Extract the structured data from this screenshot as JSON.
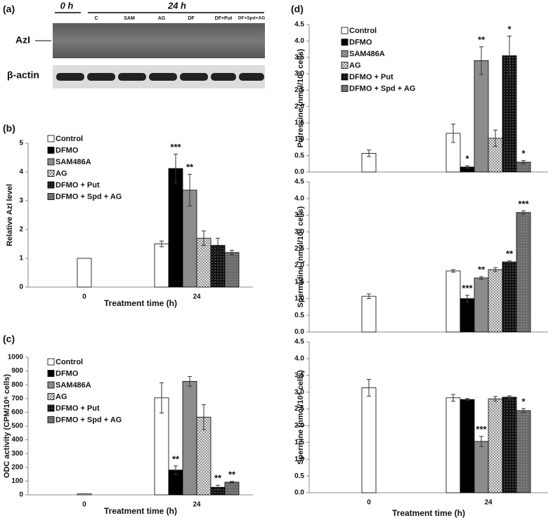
{
  "blot": {
    "panel": "(a)",
    "time_labels": [
      "0 h",
      "24 h"
    ],
    "lanes": [
      "C",
      "SAM",
      "AG",
      "DF",
      "DF+Put",
      "DF+Spd+AG"
    ],
    "rows": [
      "AzI",
      "β-actin"
    ]
  },
  "chart_data": [
    {
      "type": "bar",
      "panel": "(b)",
      "ylabel": "Relative AzI level",
      "xlabel": "Treatment time (h)",
      "categories": [
        "0",
        "24"
      ],
      "ylim": [
        0,
        5
      ],
      "yticks": [
        0,
        1,
        2,
        3,
        4,
        5
      ],
      "legend": "upper left",
      "series": [
        {
          "name": "Control",
          "color": "#ffffff",
          "values": [
            1,
            1.5
          ],
          "errors": [
            null,
            0.1
          ],
          "significance": [
            null,
            null
          ]
        },
        {
          "name": "DFMO",
          "color": "#000000",
          "values": [
            null,
            4.12
          ],
          "errors": [
            null,
            0.5
          ],
          "significance": [
            null,
            "***"
          ]
        },
        {
          "name": "SAM486A",
          "color": "#8c8c8c",
          "values": [
            null,
            3.37
          ],
          "errors": [
            null,
            0.55
          ],
          "significance": [
            null,
            "**"
          ]
        },
        {
          "name": "AG",
          "color": "#ffffff",
          "pattern": "crosshatch",
          "values": [
            null,
            1.7
          ],
          "errors": [
            null,
            0.25
          ],
          "significance": [
            null,
            null
          ]
        },
        {
          "name": "DFMO + Put",
          "color": "#111111",
          "pattern": "dots",
          "values": [
            null,
            1.45
          ],
          "errors": [
            null,
            0.25
          ],
          "significance": [
            null,
            null
          ]
        },
        {
          "name": "DFMO + Spd + AG",
          "color": "#6a6a6a",
          "pattern": "dots",
          "values": [
            null,
            1.2
          ],
          "errors": [
            null,
            0.08
          ],
          "significance": [
            null,
            null
          ]
        }
      ]
    },
    {
      "type": "bar",
      "panel": "(c)",
      "ylabel": "ODC activity (CPM/10⁶ cells)",
      "xlabel": "Treatment time (h)",
      "categories": [
        "0",
        "24"
      ],
      "ylim": [
        0,
        1000
      ],
      "yticks": [
        0,
        100,
        200,
        300,
        400,
        500,
        600,
        700,
        800,
        900,
        1000
      ],
      "legend": "upper left",
      "series": [
        {
          "name": "Control",
          "color": "#ffffff",
          "values": [
            7,
            705
          ],
          "errors": [
            null,
            110
          ],
          "significance": [
            null,
            null
          ]
        },
        {
          "name": "DFMO",
          "color": "#000000",
          "values": [
            null,
            180
          ],
          "errors": [
            null,
            30
          ],
          "significance": [
            null,
            "**"
          ]
        },
        {
          "name": "SAM486A",
          "color": "#8c8c8c",
          "values": [
            null,
            825
          ],
          "errors": [
            null,
            35
          ],
          "significance": [
            null,
            null
          ]
        },
        {
          "name": "AG",
          "color": "#ffffff",
          "pattern": "crosshatch",
          "values": [
            null,
            565
          ],
          "errors": [
            null,
            90
          ],
          "significance": [
            null,
            null
          ]
        },
        {
          "name": "DFMO + Put",
          "color": "#111111",
          "pattern": "dots",
          "values": [
            null,
            55
          ],
          "errors": [
            null,
            15
          ],
          "significance": [
            null,
            "**"
          ]
        },
        {
          "name": "DFMO + Spd + AG",
          "color": "#6a6a6a",
          "pattern": "dots",
          "values": [
            null,
            92
          ],
          "errors": [
            null,
            5
          ],
          "significance": [
            null,
            "**"
          ]
        }
      ]
    },
    {
      "type": "bar",
      "panel": "(d)",
      "ylabel": "Putrescine (nmol/10⁶ cells)",
      "categories": [
        null,
        null
      ],
      "ylim": [
        0,
        4.5
      ],
      "yticks": [
        {
          "value": 0,
          "label": "0.0"
        },
        0.5,
        {
          "value": 1,
          "label": "1.0"
        },
        1.5,
        {
          "value": 2,
          "label": "2.0"
        },
        2.5,
        {
          "value": 3,
          "label": "3.0"
        },
        3.5,
        {
          "value": 4,
          "label": "4.0"
        },
        4.5
      ],
      "legend": "upper left",
      "series": [
        {
          "name": "Control",
          "color": "#ffffff",
          "values": [
            0.57,
            1.18
          ],
          "errors": [
            0.1,
            0.28
          ],
          "significance": [
            null,
            null
          ]
        },
        {
          "name": "DFMO",
          "color": "#000000",
          "values": [
            null,
            0.15
          ],
          "errors": [
            null,
            0.04
          ],
          "significance": [
            null,
            "*"
          ]
        },
        {
          "name": "SAM486A",
          "color": "#8c8c8c",
          "values": [
            null,
            3.4
          ],
          "errors": [
            null,
            0.42
          ],
          "significance": [
            null,
            "**"
          ]
        },
        {
          "name": "AG",
          "color": "#ffffff",
          "pattern": "crosshatch",
          "values": [
            null,
            1.03
          ],
          "errors": [
            null,
            0.25
          ],
          "significance": [
            null,
            null
          ]
        },
        {
          "name": "DFMO + Put",
          "color": "#111111",
          "pattern": "dots",
          "values": [
            null,
            3.55
          ],
          "errors": [
            null,
            0.6
          ],
          "significance": [
            null,
            "*"
          ]
        },
        {
          "name": "DFMO + Spd + AG",
          "color": "#6a6a6a",
          "pattern": "dots",
          "values": [
            null,
            0.3
          ],
          "errors": [
            null,
            0.05
          ],
          "significance": [
            null,
            "*"
          ]
        }
      ]
    },
    {
      "type": "bar",
      "ylabel": "Spermidine (nmol/10⁶ cells)",
      "categories": [
        null,
        null
      ],
      "ylim": [
        0,
        4.5
      ],
      "yticks": [
        {
          "value": 0,
          "label": "0.0"
        },
        0.5,
        {
          "value": 1,
          "label": "1.0"
        },
        1.5,
        {
          "value": 2,
          "label": "2.0"
        },
        2.5,
        {
          "value": 3,
          "label": "3.0"
        },
        3.5,
        {
          "value": 4,
          "label": "4.0"
        },
        4.5
      ],
      "series": [
        {
          "name": "Control",
          "color": "#ffffff",
          "values": [
            1.07,
            1.83
          ],
          "errors": [
            0.07,
            0.04
          ],
          "significance": [
            null,
            null
          ]
        },
        {
          "name": "DFMO",
          "color": "#000000",
          "values": [
            null,
            1.0
          ],
          "errors": [
            null,
            0.1
          ],
          "significance": [
            null,
            "***"
          ]
        },
        {
          "name": "SAM486A",
          "color": "#8c8c8c",
          "values": [
            null,
            1.62
          ],
          "errors": [
            null,
            0.04
          ],
          "significance": [
            null,
            "**"
          ]
        },
        {
          "name": "AG",
          "color": "#ffffff",
          "pattern": "crosshatch",
          "values": [
            null,
            1.87
          ],
          "errors": [
            null,
            0.06
          ],
          "significance": [
            null,
            null
          ]
        },
        {
          "name": "DFMO + Put",
          "color": "#111111",
          "pattern": "dots",
          "values": [
            null,
            2.1
          ],
          "errors": [
            null,
            0.03
          ],
          "significance": [
            null,
            "**"
          ]
        },
        {
          "name": "DFMO + Spd + AG",
          "color": "#6a6a6a",
          "pattern": "dots",
          "values": [
            null,
            3.58
          ],
          "errors": [
            null,
            0.05
          ],
          "significance": [
            null,
            "***"
          ]
        }
      ]
    },
    {
      "type": "bar",
      "ylabel": "Spermine (nmol/10⁶ cells)",
      "xlabel": "Treatment time (h)",
      "categories": [
        "0",
        "24"
      ],
      "ylim": [
        0,
        4.5
      ],
      "yticks": [
        {
          "value": 0,
          "label": "0.0"
        },
        0.5,
        {
          "value": 1,
          "label": "1.0"
        },
        1.5,
        {
          "value": 2,
          "label": "2.0"
        },
        2.5,
        {
          "value": 3,
          "label": "3.0"
        },
        3.5,
        {
          "value": 4,
          "label": "4.0"
        },
        4.5
      ],
      "series": [
        {
          "name": "Control",
          "color": "#ffffff",
          "values": [
            3.13,
            2.83
          ],
          "errors": [
            0.25,
            0.1
          ],
          "significance": [
            null,
            null
          ]
        },
        {
          "name": "DFMO",
          "color": "#000000",
          "values": [
            null,
            2.78
          ],
          "errors": [
            null,
            0.03
          ],
          "significance": [
            null,
            null
          ]
        },
        {
          "name": "SAM486A",
          "color": "#8c8c8c",
          "values": [
            null,
            1.53
          ],
          "errors": [
            null,
            0.15
          ],
          "significance": [
            null,
            "***"
          ]
        },
        {
          "name": "AG",
          "color": "#ffffff",
          "pattern": "crosshatch",
          "values": [
            null,
            2.8
          ],
          "errors": [
            null,
            0.07
          ],
          "significance": [
            null,
            null
          ]
        },
        {
          "name": "DFMO + Put",
          "color": "#111111",
          "pattern": "dots",
          "values": [
            null,
            2.85
          ],
          "errors": [
            null,
            0.04
          ],
          "significance": [
            null,
            null
          ]
        },
        {
          "name": "DFMO + Spd + AG",
          "color": "#6a6a6a",
          "pattern": "dots",
          "values": [
            null,
            2.45
          ],
          "errors": [
            null,
            0.06
          ],
          "significance": [
            null,
            "*"
          ]
        }
      ]
    }
  ]
}
